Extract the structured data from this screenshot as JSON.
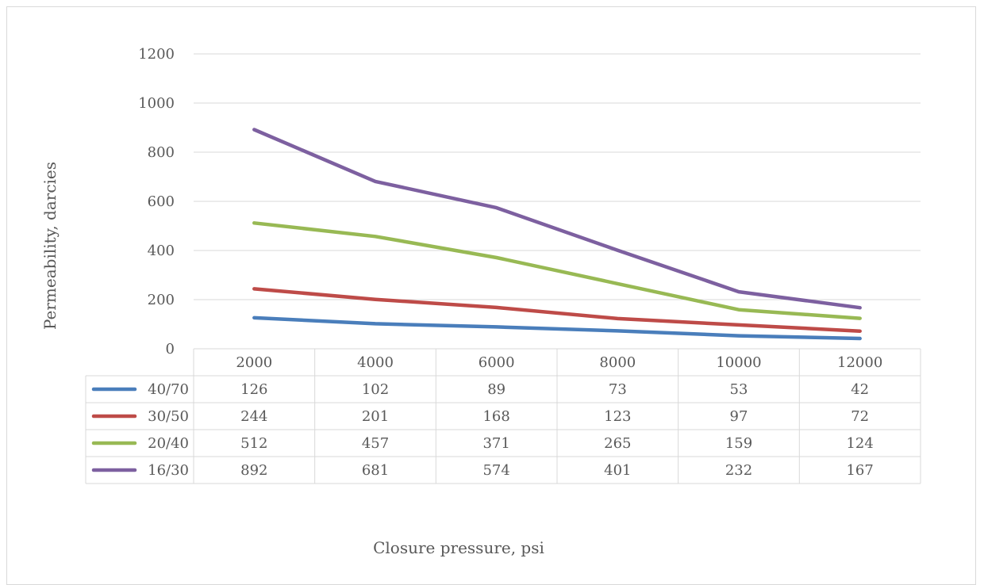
{
  "chart_data": {
    "type": "line",
    "title": "",
    "xlabel": "Closure pressure, psi",
    "ylabel": "Permeability, darcies",
    "ylim": [
      0,
      1200
    ],
    "yticks": [
      "0",
      "200",
      "400",
      "600",
      "800",
      "1000",
      "1200"
    ],
    "categories": [
      "2000",
      "4000",
      "6000",
      "8000",
      "10000",
      "12000"
    ],
    "grid": true,
    "legend": "data-table",
    "series": [
      {
        "name": "40/70",
        "color": "#4a7ebb",
        "values": [
          126,
          102,
          89,
          73,
          53,
          42
        ]
      },
      {
        "name": "30/50",
        "color": "#be4b48",
        "values": [
          244,
          201,
          168,
          123,
          97,
          72
        ]
      },
      {
        "name": "20/40",
        "color": "#98b954",
        "values": [
          512,
          457,
          371,
          265,
          159,
          124
        ]
      },
      {
        "name": "16/30",
        "color": "#7d60a0",
        "values": [
          892,
          681,
          574,
          401,
          232,
          167
        ]
      }
    ]
  }
}
